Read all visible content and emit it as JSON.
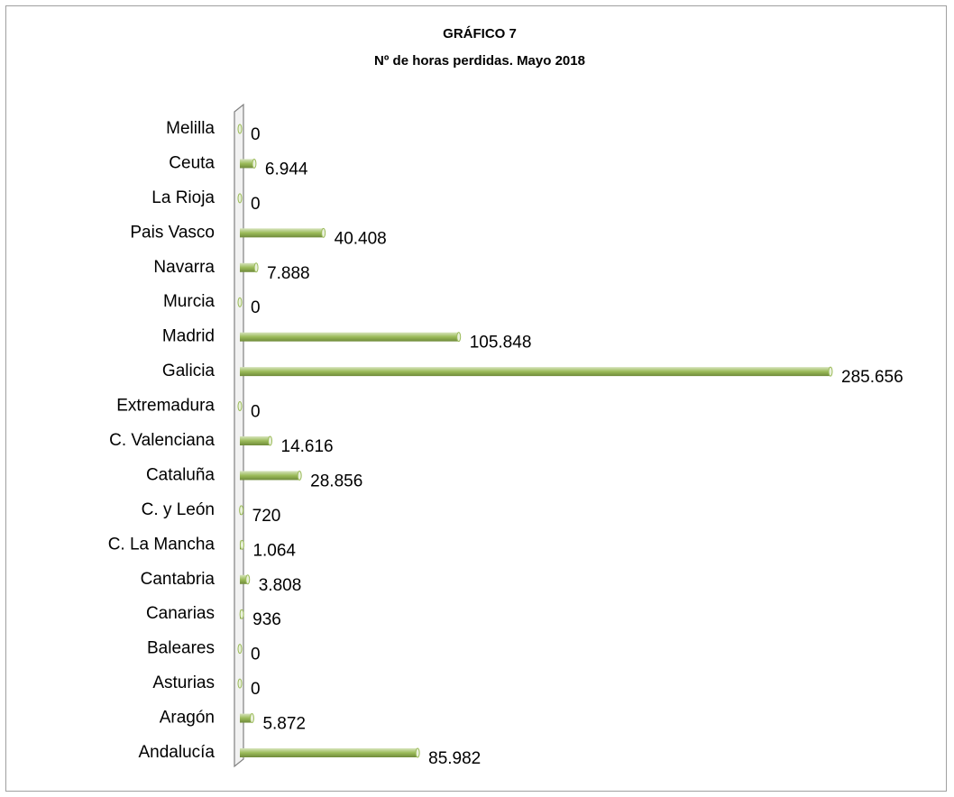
{
  "chart_data": {
    "type": "bar",
    "orientation": "horizontal",
    "title": "GRÁFICO 7",
    "subtitle": "Nº de horas perdidas. Mayo 2018",
    "categories": [
      "Melilla",
      "Ceuta",
      "La Rioja",
      "Pais Vasco",
      "Navarra",
      "Murcia",
      "Madrid",
      "Galicia",
      "Extremadura",
      "C. Valenciana",
      "Cataluña",
      "C. y León",
      "C. La Mancha",
      "Cantabria",
      "Canarias",
      "Baleares",
      "Asturias",
      "Aragón",
      "Andalucía"
    ],
    "values": [
      0,
      6944,
      0,
      40408,
      7888,
      0,
      105848,
      285656,
      0,
      14616,
      28856,
      720,
      1064,
      3808,
      936,
      0,
      0,
      5872,
      85982
    ],
    "value_labels": [
      "0",
      "6.944",
      "0",
      "40.408",
      "7.888",
      "0",
      "105.848",
      "285.656",
      "0",
      "14.616",
      "28.856",
      "720",
      "1.064",
      "3.808",
      "936",
      "0",
      "0",
      "5.872",
      "85.982"
    ],
    "color": "#9bbb59"
  }
}
